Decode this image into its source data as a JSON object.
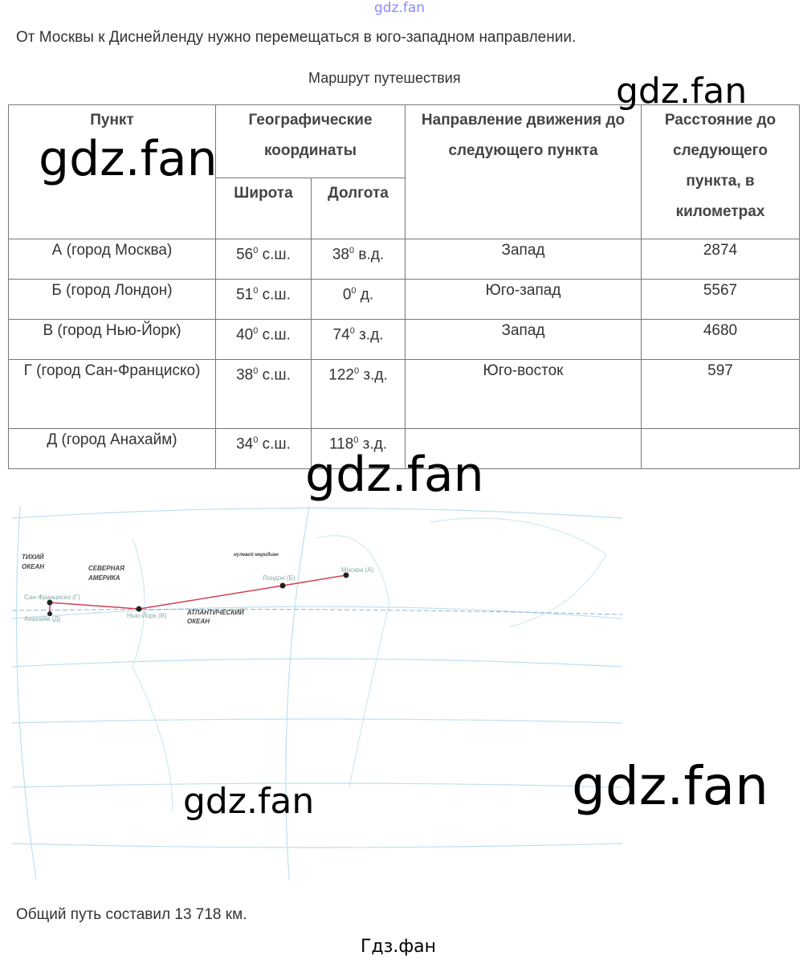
{
  "watermarks": {
    "top": "gdz.fan",
    "w1": "gdz.fan",
    "w2": "gdz.fan",
    "w3": "gdz.fan",
    "w4": "gdz.fan",
    "w5": "gdz.fan",
    "footer": "Гдз.фан"
  },
  "intro": "От Москвы к Диснейленду нужно перемещаться в юго-западном направлении.",
  "table_title": "Маршрут путешествия",
  "headers": {
    "point": "Пункт",
    "coords": "Географические координаты",
    "lat": "Широта",
    "lon": "Долгота",
    "direction": "Направление движения до следующего пункта",
    "distance": "Расстояние до следующего пункта, в километрах"
  },
  "rows": [
    {
      "point": "А (город Москва)",
      "lat": "56",
      "lat_suffix": " с.ш.",
      "lon": "38",
      "lon_suffix": " в.д.",
      "direction": "Запад",
      "distance": "2874"
    },
    {
      "point": "Б (город Лондон)",
      "lat": "51",
      "lat_suffix": " с.ш.",
      "lon": "0",
      "lon_suffix": " д.",
      "direction": "Юго-запад",
      "distance": "5567"
    },
    {
      "point": "В (город Нью-Йорк)",
      "lat": "40",
      "lat_suffix": " с.ш.",
      "lon": "74",
      "lon_suffix": " з.д.",
      "direction": "Запад",
      "distance": "4680"
    },
    {
      "point": "Г (город Сан-Франциско)",
      "lat": "38",
      "lat_suffix": " с.ш.",
      "lon": "122",
      "lon_suffix": " з.д.",
      "direction": "Юго-восток",
      "distance": "597"
    },
    {
      "point": "Д (город Анахайм)",
      "lat": "34",
      "lat_suffix": " с.ш.",
      "lon": "118",
      "lon_suffix": " з.д.",
      "direction": "",
      "distance": ""
    }
  ],
  "degree_sign": "0",
  "map": {
    "pacific": "ТИХИЙ",
    "pacific2": "ОКЕАН",
    "na": "СЕВЕРНАЯ",
    "na2": "АМЕРИКА",
    "meridian": "нулевой меридиан",
    "atlantic": "АТЛАНТИЧЕСКИЙ",
    "atlantic2": "ОКЕАН",
    "moscow": "Москва (А)",
    "london": "Лондон (Б)",
    "ny": "Нью-Йорк (В)",
    "sf": "Сан-Франциско (Г)",
    "anaheim": "Анахайм (Д)",
    "route_color": "#d04050"
  },
  "summary": "Общий путь составил 13 718 км."
}
